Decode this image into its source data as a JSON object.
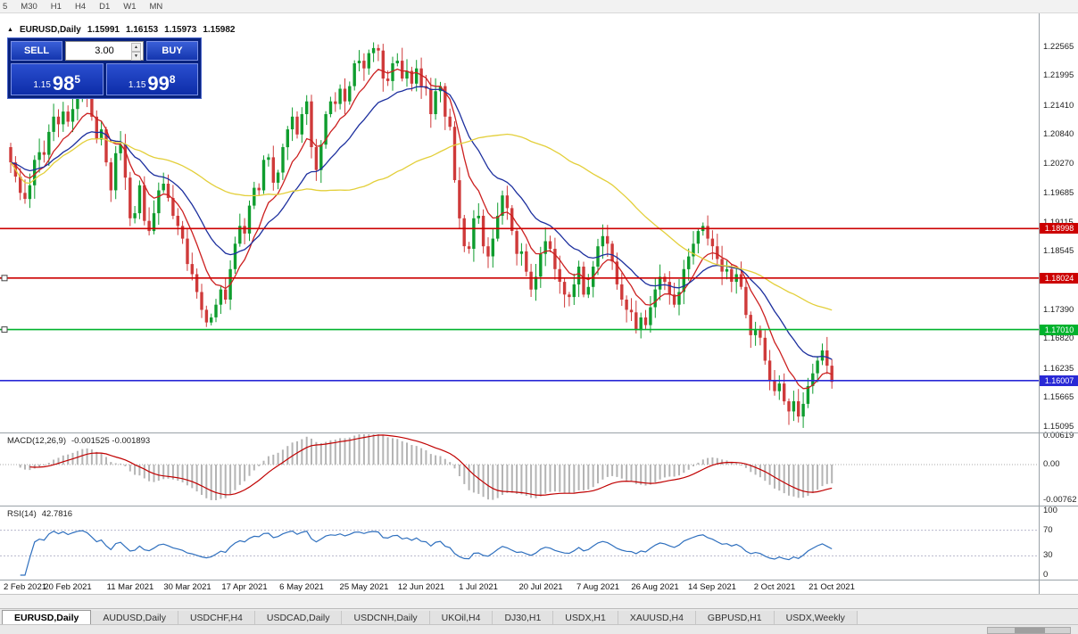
{
  "toolbar": {
    "timeframes": [
      "5",
      "M30",
      "H1",
      "H4",
      "D1",
      "W1",
      "MN"
    ]
  },
  "title": {
    "symbol": "EURUSD,Daily",
    "open": "1.15991",
    "high": "1.16153",
    "low": "1.15973",
    "close": "1.15982"
  },
  "icons": {
    "trade_toggle": "▲",
    "spin_up": "▲",
    "spin_down": "▼"
  },
  "trade_panel": {
    "sell_label": "SELL",
    "buy_label": "BUY",
    "volume": "3.00",
    "bid": {
      "prefix": "1.15",
      "big": "98",
      "sup": "5"
    },
    "ask": {
      "prefix": "1.15",
      "big": "99",
      "sup": "8"
    }
  },
  "price_scale": [
    "1.22565",
    "1.21995",
    "1.21410",
    "1.20840",
    "1.20270",
    "1.19685",
    "1.19115",
    "1.18545",
    "1.17975",
    "1.17390",
    "1.16820",
    "1.16235",
    "1.15665",
    "1.15095"
  ],
  "hlines": [
    {
      "price": 1.18998,
      "label": "1.18998",
      "color": "#cc0000",
      "handles": false
    },
    {
      "price": 1.18024,
      "label": "1.18024",
      "color": "#cc0000",
      "handles": true
    },
    {
      "price": 1.1701,
      "label": "1.17010",
      "color": "#00b22d",
      "handles": true
    },
    {
      "price": 1.16007,
      "label": "1.16007",
      "color": "#2929d6",
      "handles": false
    }
  ],
  "indicators": {
    "macd": {
      "name": "MACD(12,26,9)",
      "values": "-0.001525 -0.001893",
      "fast": 12,
      "slow": 26,
      "signal": 9,
      "hist_color": "#b4b4b4",
      "signal_color": "#c00000",
      "scale": [
        {
          "v": 0.00619,
          "label": "0.00619"
        },
        {
          "v": 0,
          "label": "0.00"
        },
        {
          "v": -0.00762,
          "label": "-0.00762"
        }
      ]
    },
    "rsi": {
      "name": "RSI(14)",
      "value": "42.7816",
      "period": 14,
      "color": "#2e6fbe",
      "levels": [
        {
          "v": 100,
          "label": "100"
        },
        {
          "v": 70,
          "label": "70"
        },
        {
          "v": 30,
          "label": "30"
        },
        {
          "v": 0,
          "label": "0"
        }
      ]
    }
  },
  "chart_data": {
    "type": "candlestick",
    "symbol": "EURUSD",
    "timeframe": "Daily",
    "ylim": [
      1.149,
      1.229
    ],
    "x_labels": [
      "2 Feb 2021",
      "20 Feb 2021",
      "11 Mar 2021",
      "30 Mar 2021",
      "17 Apr 2021",
      "6 May 2021",
      "25 May 2021",
      "12 Jun 2021",
      "1 Jul 2021",
      "20 Jul 2021",
      "7 Aug 2021",
      "26 Aug 2021",
      "14 Sep 2021",
      "2 Oct 2021",
      "21 Oct 2021"
    ],
    "colors": {
      "up": "#0f9d2e",
      "down": "#cf3a3a"
    },
    "ma": [
      {
        "type": "ema",
        "period": 9,
        "color": "#cc2020"
      },
      {
        "type": "ema",
        "period": 21,
        "color": "#1c2f9e"
      },
      {
        "type": "sma",
        "period": 55,
        "color": "#e3cf3a"
      }
    ],
    "closes": [
      1.203,
      1.2002,
      1.197,
      1.1958,
      1.1985,
      1.2035,
      1.205,
      1.2045,
      1.209,
      1.212,
      1.2105,
      1.213,
      1.211,
      1.2135,
      1.216,
      1.217,
      1.2155,
      1.212,
      1.2075,
      1.2095,
      1.203,
      1.1975,
      1.2048,
      1.2065,
      1.2,
      1.192,
      1.193,
      1.1985,
      1.1915,
      1.1895,
      1.193,
      1.1975,
      1.1988,
      1.196,
      1.1925,
      1.1905,
      1.188,
      1.183,
      1.181,
      1.1775,
      1.174,
      1.1715,
      1.1725,
      1.175,
      1.178,
      1.176,
      1.182,
      1.187,
      1.1905,
      1.189,
      1.1945,
      1.198,
      1.1975,
      1.2035,
      1.204,
      1.199,
      1.201,
      1.206,
      1.2095,
      1.212,
      1.2085,
      1.2125,
      1.215,
      1.206,
      1.2015,
      1.2065,
      1.2125,
      1.215,
      1.2145,
      1.2175,
      1.215,
      1.218,
      1.2225,
      1.223,
      1.2215,
      1.2245,
      1.2255,
      1.225,
      1.2195,
      1.219,
      1.2225,
      1.223,
      1.2195,
      1.221,
      1.2185,
      1.2215,
      1.218,
      1.2175,
      1.2125,
      1.217,
      1.218,
      1.212,
      1.21,
      1.1995,
      1.192,
      1.1865,
      1.186,
      1.192,
      1.1925,
      1.1865,
      1.1845,
      1.188,
      1.1925,
      1.1965,
      1.194,
      1.1895,
      1.185,
      1.1855,
      1.1815,
      1.178,
      1.1805,
      1.185,
      1.1875,
      1.186,
      1.182,
      1.1795,
      1.177,
      1.1765,
      1.179,
      1.1825,
      1.177,
      1.1785,
      1.1825,
      1.1865,
      1.1885,
      1.187,
      1.1835,
      1.179,
      1.176,
      1.174,
      1.1735,
      1.17,
      1.1725,
      1.171,
      1.1745,
      1.178,
      1.1805,
      1.1795,
      1.177,
      1.175,
      1.1775,
      1.182,
      1.1845,
      1.187,
      1.1895,
      1.1905,
      1.188,
      1.1865,
      1.184,
      1.1815,
      1.182,
      1.1795,
      1.181,
      1.1785,
      1.173,
      1.169,
      1.17,
      1.1685,
      1.164,
      1.16,
      1.158,
      1.1595,
      1.156,
      1.154,
      1.156,
      1.153,
      1.1555,
      1.159,
      1.1615,
      1.164,
      1.166,
      1.163,
      1.1598
    ]
  },
  "tabs": [
    {
      "label": "EURUSD,Daily",
      "active": true
    },
    {
      "label": "AUDUSD,Daily"
    },
    {
      "label": "USDCHF,H4"
    },
    {
      "label": "USDCAD,Daily"
    },
    {
      "label": "USDCNH,Daily"
    },
    {
      "label": "UKOil,H4"
    },
    {
      "label": "DJ30,H1"
    },
    {
      "label": "USDX,H1"
    },
    {
      "label": "XAUUSD,H4"
    },
    {
      "label": "GBPUSD,H1"
    },
    {
      "label": "USDX,Weekly"
    }
  ]
}
